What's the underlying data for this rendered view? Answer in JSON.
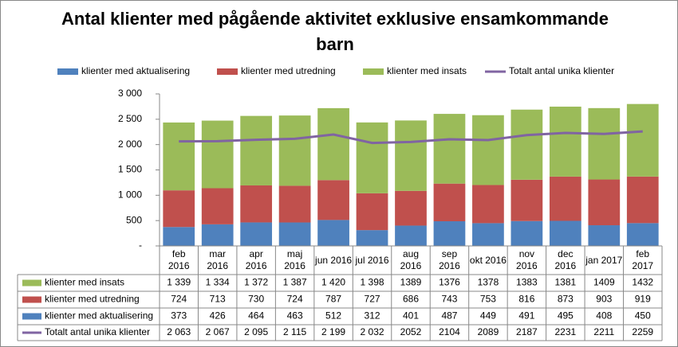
{
  "chart_data": {
    "type": "stacked-bar-line",
    "title": "Antal klienter med pågående aktivitet exklusive ensamkommande barn",
    "categories": [
      "feb 2016",
      "mar 2016",
      "apr 2016",
      "maj 2016",
      "jun 2016",
      "jul 2016",
      "aug 2016",
      "sep 2016",
      "okt 2016",
      "nov 2016",
      "dec 2016",
      "jan 2017",
      "feb 2017"
    ],
    "series": [
      {
        "name": "klienter med aktualisering",
        "color": "#4f81bd",
        "kind": "bar",
        "values": [
          373,
          426,
          464,
          463,
          512,
          312,
          401,
          487,
          449,
          491,
          495,
          408,
          450
        ]
      },
      {
        "name": "klienter med utredning",
        "color": "#c0504d",
        "kind": "bar",
        "values": [
          724,
          713,
          730,
          724,
          787,
          727,
          686,
          743,
          753,
          816,
          873,
          903,
          919
        ]
      },
      {
        "name": "klienter med insats",
        "color": "#9bbb59",
        "kind": "bar",
        "values": [
          1339,
          1334,
          1372,
          1387,
          1420,
          1398,
          1389,
          1376,
          1378,
          1383,
          1381,
          1409,
          1432
        ],
        "value_labels": [
          "1 339",
          "1 334",
          "1 372",
          "1 387",
          "1 420",
          "1 398",
          "1389",
          "1376",
          "1378",
          "1383",
          "1381",
          "1409",
          "1432"
        ]
      },
      {
        "name": "Totalt antal unika klienter",
        "color": "#8064a2",
        "kind": "line",
        "values": [
          2063,
          2067,
          2095,
          2115,
          2199,
          2032,
          2052,
          2104,
          2089,
          2187,
          2231,
          2211,
          2259
        ],
        "value_labels": [
          "2 063",
          "2 067",
          "2 095",
          "2 115",
          "2 199",
          "2 032",
          "2052",
          "2104",
          "2089",
          "2187",
          "2231",
          "2211",
          "2259"
        ]
      }
    ],
    "ylim": [
      0,
      3000
    ],
    "yticks": [
      {
        "value": 0,
        "label": "-"
      },
      500,
      {
        "value": 1000,
        "label": "1 000"
      },
      {
        "value": 1500,
        "label": "1 500"
      },
      {
        "value": 2000,
        "label": "2 000"
      },
      {
        "value": 2500,
        "label": "2 500"
      },
      {
        "value": 3000,
        "label": "3 000"
      }
    ],
    "grid": false,
    "legend": "top"
  }
}
